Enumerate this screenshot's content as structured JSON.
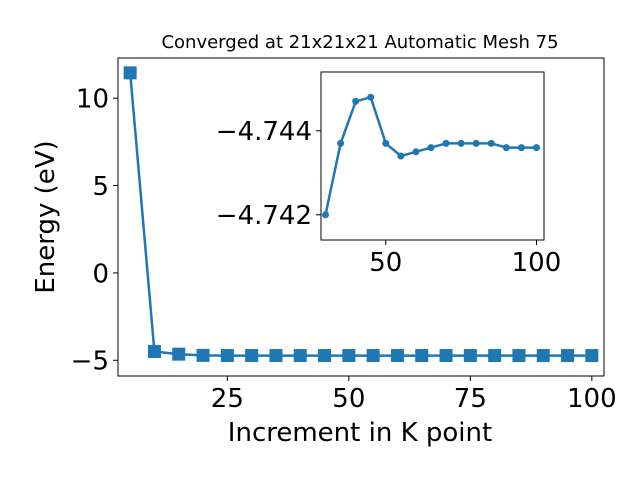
{
  "chart_data": [
    {
      "type": "line",
      "title": "Converged at 21x21x21 Automatic Mesh 75",
      "xlabel": "Increment in K point",
      "ylabel": "Energy (eV)",
      "xlim": [
        2.5,
        102.5
      ],
      "ylim": [
        -5.9,
        12.3
      ],
      "xticks": [
        25,
        50,
        75,
        100
      ],
      "yticks": [
        -5,
        0,
        5,
        10
      ],
      "ytick_labels": [
        "−5",
        "0",
        "5",
        "10"
      ],
      "marker": "square",
      "color": "#1f77b4",
      "grid": false,
      "series": [
        {
          "x": [
            5,
            10,
            15,
            20,
            25,
            30,
            35,
            40,
            45,
            50,
            55,
            60,
            65,
            70,
            75,
            80,
            85,
            90,
            95,
            100
          ],
          "y": [
            11.45,
            -4.5,
            -4.65,
            -4.72,
            -4.73,
            -4.73,
            -4.73,
            -4.73,
            -4.73,
            -4.73,
            -4.73,
            -4.73,
            -4.73,
            -4.73,
            -4.73,
            -4.73,
            -4.73,
            -4.73,
            -4.73,
            -4.73
          ]
        }
      ]
    },
    {
      "type": "line",
      "title": "",
      "xlabel": "",
      "ylabel": "",
      "xlim": [
        28.5,
        102.5
      ],
      "ylim": [
        -4.7414,
        -4.7454
      ],
      "xticks": [
        50,
        100
      ],
      "yticks": [
        -4.744,
        -4.742
      ],
      "ytick_labels": [
        "−4.744",
        "−4.742"
      ],
      "marker": "circle",
      "color": "#1f77b4",
      "grid": false,
      "series": [
        {
          "x": [
            30,
            35,
            40,
            45,
            50,
            55,
            60,
            65,
            70,
            75,
            80,
            85,
            90,
            95,
            100
          ],
          "y": [
            -4.742,
            -4.7437,
            -4.7447,
            -4.7448,
            -4.7437,
            -4.7434,
            -4.7435,
            -4.7436,
            -4.7437,
            -4.7437,
            -4.7437,
            -4.7437,
            -4.7436,
            -4.7436,
            -4.7436
          ]
        }
      ]
    }
  ]
}
